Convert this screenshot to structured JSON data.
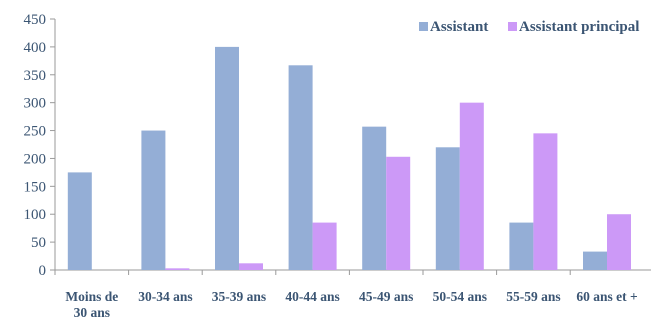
{
  "chart_data": {
    "type": "bar",
    "categories": [
      [
        "Moins de",
        "30 ans"
      ],
      [
        "30-34 ans"
      ],
      [
        "35-39 ans"
      ],
      [
        "40-44 ans"
      ],
      [
        "45-49 ans"
      ],
      [
        "50-54 ans"
      ],
      [
        "55-59 ans"
      ],
      [
        "60 ans et +"
      ]
    ],
    "series": [
      {
        "name": "Assistant",
        "color": "#94aed6",
        "values": [
          175,
          250,
          400,
          367,
          257,
          220,
          85,
          33
        ]
      },
      {
        "name": "Assistant principal",
        "color": "#cc99f7",
        "values": [
          0,
          3,
          12,
          85,
          203,
          300,
          245,
          100
        ]
      }
    ],
    "ylim": [
      0,
      450
    ],
    "yticks": [
      0,
      50,
      100,
      150,
      200,
      250,
      300,
      350,
      400,
      450
    ],
    "grid": false,
    "legend_position": "top-right",
    "title": "",
    "xlabel": "",
    "ylabel": ""
  }
}
